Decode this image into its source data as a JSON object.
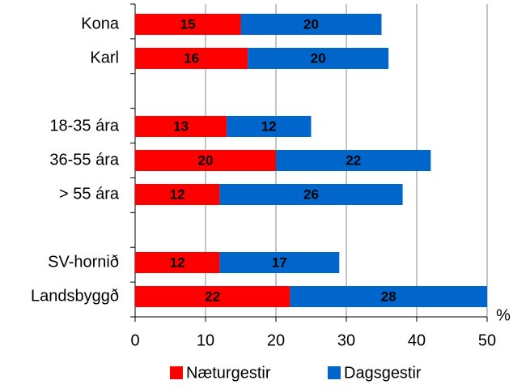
{
  "chart_data": {
    "type": "stacked-barh",
    "categories": [
      "Kona",
      "Karl",
      null,
      "18-35 ára",
      "36-55 ára",
      "> 55 ára",
      null,
      "SV-hornið",
      "Landsbyggð"
    ],
    "series": [
      {
        "name": "Næturgestir",
        "color": "#ff0000",
        "values": [
          15,
          16,
          null,
          13,
          20,
          12,
          null,
          12,
          22
        ]
      },
      {
        "name": "Dagsgestir",
        "color": "#0066cc",
        "values": [
          20,
          20,
          null,
          12,
          22,
          26,
          null,
          17,
          28
        ]
      }
    ],
    "xlabel": "%",
    "xlim": [
      0,
      50
    ],
    "xticks": [
      0,
      10,
      20,
      30,
      40,
      50
    ],
    "grid": true,
    "legend": "bottom"
  }
}
